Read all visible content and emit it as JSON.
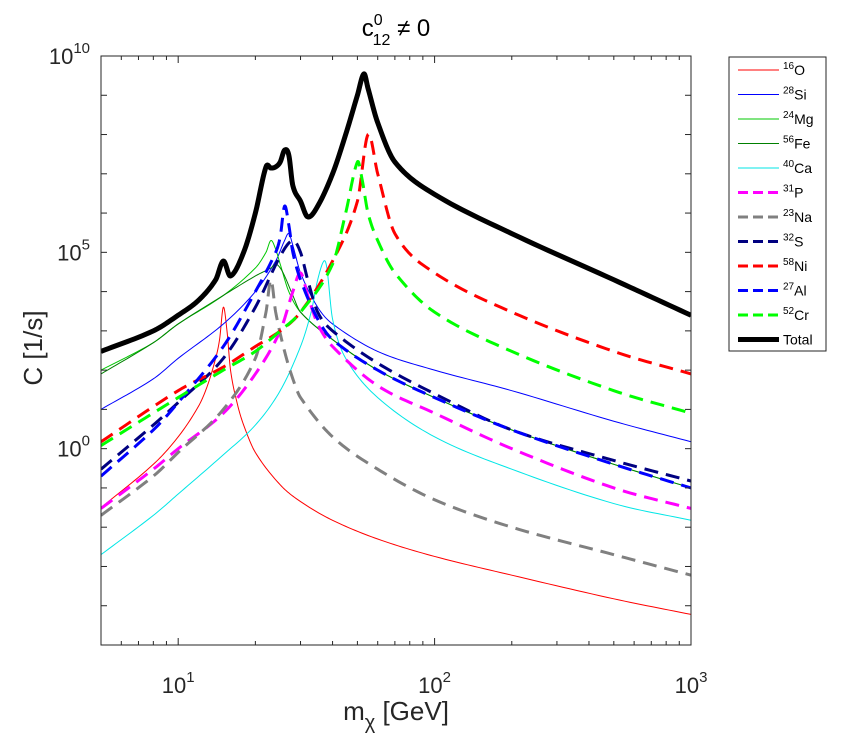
{
  "chart_data": {
    "type": "line",
    "title": "c_{12}^{0} ≠ 0",
    "title_parts": {
      "base": "c",
      "sup": "0",
      "sub": "12",
      "rest": " ≠ 0"
    },
    "xlabel": "m_χ [GeV]",
    "xlabel_parts": {
      "base": "m",
      "sub": "χ",
      "rest": " [GeV]"
    },
    "ylabel": "C [1/s]",
    "xscale": "log",
    "yscale": "log",
    "xlim": [
      5,
      1000
    ],
    "ylim": [
      1e-05,
      10000000000.0
    ],
    "x_ticks": [
      {
        "value": 10,
        "base": "10",
        "exp": "1"
      },
      {
        "value": 100,
        "base": "10",
        "exp": "2"
      },
      {
        "value": 1000,
        "base": "10",
        "exp": "3"
      }
    ],
    "y_ticks": [
      {
        "value": 1,
        "base": "10",
        "exp": "0"
      },
      {
        "value": 100000,
        "base": "10",
        "exp": "5"
      },
      {
        "value": 10000000000,
        "base": "10",
        "exp": "10"
      }
    ],
    "legend_position": "outside-right-top",
    "series": [
      {
        "name": "16O",
        "label_sup": "16",
        "label_el": "O",
        "color": "#ff0000",
        "dash": "solid",
        "width": 1,
        "x": [
          5,
          8,
          10,
          12,
          13,
          14,
          14.5,
          15,
          15.5,
          16,
          17,
          18,
          20,
          25,
          30,
          40,
          60,
          100,
          200,
          500,
          1000
        ],
        "y": [
          0.0316,
          0.4,
          2,
          12,
          40,
          200,
          600,
          4000,
          1000,
          100,
          14,
          4,
          0.8,
          0.12,
          0.045,
          0.015,
          0.005,
          0.0018,
          0.0006,
          0.00015,
          6e-05
        ]
      },
      {
        "name": "28Si",
        "label_sup": "28",
        "label_el": "Si",
        "color": "#0000ff",
        "dash": "solid",
        "width": 1,
        "x": [
          5,
          8,
          10,
          15,
          20,
          24,
          26,
          27,
          28,
          30,
          35,
          40,
          60,
          100,
          200,
          500,
          1000
        ],
        "y": [
          10,
          60,
          200,
          1500,
          10000,
          60000,
          200000,
          300000,
          150000,
          30000,
          4000,
          1500,
          300,
          100,
          30,
          5,
          1.5
        ]
      },
      {
        "name": "24Mg",
        "label_sup": "24",
        "label_el": "Mg",
        "color": "#00c800",
        "dash": "solid",
        "width": 1,
        "x": [
          5,
          8,
          10,
          15,
          20,
          22,
          23,
          24,
          25,
          27,
          30,
          40,
          60,
          100,
          200,
          500,
          1000
        ],
        "y": [
          100,
          500,
          1500,
          8000,
          40000,
          100000,
          200000,
          120000,
          50000,
          10000,
          3000,
          600,
          100,
          20,
          3,
          0.4,
          0.1
        ]
      },
      {
        "name": "56Fe",
        "label_sup": "56",
        "label_el": "Fe",
        "color": "#008000",
        "dash": "solid",
        "width": 1,
        "x": [
          5,
          8,
          10,
          15,
          20,
          23,
          24,
          25,
          26,
          28,
          30,
          40,
          60,
          100,
          200,
          500,
          1000
        ],
        "y": [
          80,
          500,
          1500,
          8000,
          25000,
          40000,
          50000,
          40000,
          25000,
          8000,
          3000,
          600,
          100,
          20,
          3,
          0.4,
          0.1
        ]
      },
      {
        "name": "40Ca",
        "label_sup": "40",
        "label_el": "Ca",
        "color": "#00e6e6",
        "dash": "solid",
        "width": 1,
        "x": [
          5,
          8,
          10,
          15,
          20,
          25,
          30,
          33,
          35,
          37,
          38,
          40,
          45,
          60,
          100,
          200,
          500,
          1000
        ],
        "y": [
          0.002,
          0.02,
          0.07,
          0.7,
          4,
          30,
          400,
          3000,
          20000,
          60000,
          40000,
          2000,
          200,
          20,
          2,
          0.3,
          0.04,
          0.015
        ]
      },
      {
        "name": "31P",
        "label_sup": "31",
        "label_el": "P",
        "color": "#ff00ff",
        "dash": "dash",
        "width": 3,
        "x": [
          5,
          8,
          10,
          15,
          20,
          25,
          28,
          30,
          32,
          35,
          40,
          60,
          100,
          200,
          500,
          1000
        ],
        "y": [
          0.03,
          0.3,
          1,
          8,
          80,
          1000,
          10000,
          30000,
          8000,
          1500,
          400,
          40,
          8,
          1,
          0.1,
          0.03
        ]
      },
      {
        "name": "23Na",
        "label_sup": "23",
        "label_el": "Na",
        "color": "#808080",
        "dash": "dash",
        "width": 3,
        "x": [
          5,
          8,
          10,
          15,
          20,
          22,
          23,
          24,
          26,
          28,
          30,
          40,
          60,
          100,
          200,
          500,
          1000
        ],
        "y": [
          0.02,
          0.2,
          0.8,
          10,
          200,
          3000,
          20000,
          3000,
          300,
          60,
          20,
          2,
          0.3,
          0.05,
          0.01,
          0.002,
          0.0006
        ]
      },
      {
        "name": "32S",
        "label_sup": "32",
        "label_el": "S",
        "color": "#000080",
        "dash": "dash",
        "width": 3,
        "x": [
          5,
          8,
          10,
          15,
          20,
          25,
          28,
          30,
          32,
          35,
          40,
          60,
          100,
          200,
          500,
          1000
        ],
        "y": [
          0.3,
          4,
          15,
          200,
          4000,
          80000,
          200000,
          100000,
          20000,
          3000,
          1000,
          150,
          25,
          3,
          0.5,
          0.15
        ]
      },
      {
        "name": "58Ni",
        "label_sup": "58",
        "label_el": "Ni",
        "color": "#ff0000",
        "dash": "dash",
        "width": 3,
        "x": [
          5,
          10,
          15,
          20,
          25,
          30,
          40,
          50,
          55,
          60,
          70,
          100,
          200,
          500,
          1000
        ],
        "y": [
          1.5,
          30,
          120,
          400,
          1000,
          3000,
          60000,
          2000000,
          100000000,
          10000000,
          300000,
          30000,
          3000,
          300,
          80
        ]
      },
      {
        "name": "27Al",
        "label_sup": "27",
        "label_el": "Al",
        "color": "#0000ff",
        "dash": "dash",
        "width": 3,
        "x": [
          5,
          8,
          10,
          15,
          20,
          24,
          25,
          26,
          27,
          28,
          30,
          35,
          40,
          60,
          100,
          200,
          500,
          1000
        ],
        "y": [
          0.2,
          3,
          15,
          400,
          10000,
          100000,
          250000,
          1500000,
          500000,
          100000,
          20000,
          2000,
          600,
          100,
          20,
          3,
          0.4,
          0.1
        ]
      },
      {
        "name": "52Cr",
        "label_sup": "52",
        "label_el": "Cr",
        "color": "#00ff00",
        "dash": "dash",
        "width": 3,
        "x": [
          5,
          10,
          15,
          20,
          25,
          30,
          40,
          45,
          50,
          52,
          55,
          60,
          70,
          100,
          200,
          500,
          1000
        ],
        "y": [
          1.2,
          20,
          100,
          300,
          1000,
          3000,
          50000,
          1000000,
          20000000,
          8000000,
          1000000,
          200000,
          30000,
          3000,
          300,
          30,
          8
        ]
      },
      {
        "name": "Total",
        "label_sup": "",
        "label_el": "Total",
        "color": "#000000",
        "dash": "solid",
        "width": 5,
        "x": [
          5,
          8,
          10,
          12,
          14,
          15,
          16,
          18,
          20,
          22,
          23,
          24,
          25,
          26,
          27,
          28,
          30,
          32,
          35,
          40,
          45,
          50,
          53,
          55,
          60,
          70,
          100,
          200,
          500,
          1000
        ],
        "y": [
          300,
          1000,
          2500,
          6000,
          20000,
          60000,
          25000,
          100000,
          1000000,
          15000000,
          14000000,
          15000000,
          20000000,
          40000000,
          30000000,
          5000000,
          2000000,
          800000,
          1500000,
          10000000,
          100000000,
          1000000000,
          3500000000,
          1500000000,
          200000000,
          20000000,
          3000000,
          300000,
          20000,
          2500
        ]
      }
    ]
  }
}
